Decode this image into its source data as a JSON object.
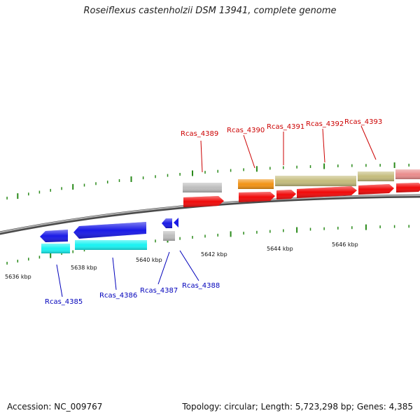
{
  "title": "Roseiflexus castenholzii DSM 13941, complete genome",
  "footer": {
    "accession": "Accession: NC_009767",
    "summary": "Topology: circular; Length: 5,723,298 bp; Genes: 4,385"
  },
  "colors": {
    "backbone": "#8a8a8a",
    "tick": "#2a8a1a",
    "plus_label": "#cc0000",
    "minus_label": "#0000bb",
    "red": "#f00a0a",
    "blue": "#1a1ae6",
    "cyan": "#19f2f2",
    "grey": "#bdbdbd",
    "orange": "#f29314",
    "olive": "#c4bc7c",
    "pink": "#ea8d8d"
  },
  "scale_labels": [
    "5636 kbp",
    "5638 kbp",
    "5640 kbp",
    "5642 kbp",
    "5644 kbp",
    "5646 kbp"
  ],
  "genes_plus": [
    {
      "label": "Rcas_4389"
    },
    {
      "label": "Rcas_4390"
    },
    {
      "label": "Rcas_4391"
    },
    {
      "label": "Rcas_4392"
    },
    {
      "label": "Rcas_4393"
    }
  ],
  "genes_minus": [
    {
      "label": "Rcas_4385"
    },
    {
      "label": "Rcas_4386"
    },
    {
      "label": "Rcas_4387"
    },
    {
      "label": "Rcas_4388"
    }
  ]
}
